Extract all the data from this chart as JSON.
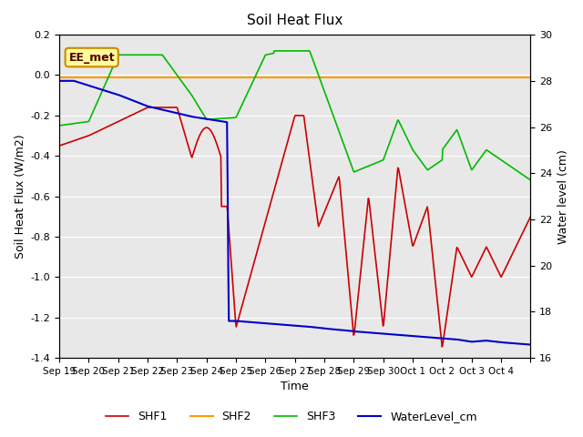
{
  "title": "Soil Heat Flux",
  "xlabel": "Time",
  "ylabel_left": "Soil Heat Flux (W/m2)",
  "ylabel_right": "Water level (cm)",
  "ylim_left": [
    -1.4,
    0.2
  ],
  "ylim_right": [
    16,
    30
  ],
  "yticks_left": [
    -1.4,
    -1.2,
    -1.0,
    -0.8,
    -0.6,
    -0.4,
    -0.2,
    0.0,
    0.2
  ],
  "yticks_right": [
    16,
    18,
    20,
    22,
    24,
    26,
    28,
    30
  ],
  "background_color": "#e8e8e8",
  "colors": {
    "SHF1": "#cc0000",
    "SHF2": "#ff9900",
    "SHF3": "#00bb00",
    "WaterLevel_cm": "#0000cc"
  },
  "annotation_text": "EE_met",
  "annotation_box_color": "#ffff99",
  "annotation_border_color": "#cc8800",
  "x_tick_positions": [
    0,
    1,
    2,
    3,
    4,
    5,
    6,
    7,
    8,
    9,
    10,
    11,
    12,
    13,
    14,
    15,
    16
  ],
  "x_tick_labels": [
    "Sep 19",
    "Sep 20",
    "Sep 21",
    "Sep 22",
    "Sep 23",
    "Sep 24",
    "Sep 25",
    "Sep 26",
    "Sep 27",
    "Sep 28",
    "Sep 29",
    "Sep 30",
    "Oct 1",
    "Oct 2",
    "Oct 3",
    "Oct 4",
    ""
  ]
}
